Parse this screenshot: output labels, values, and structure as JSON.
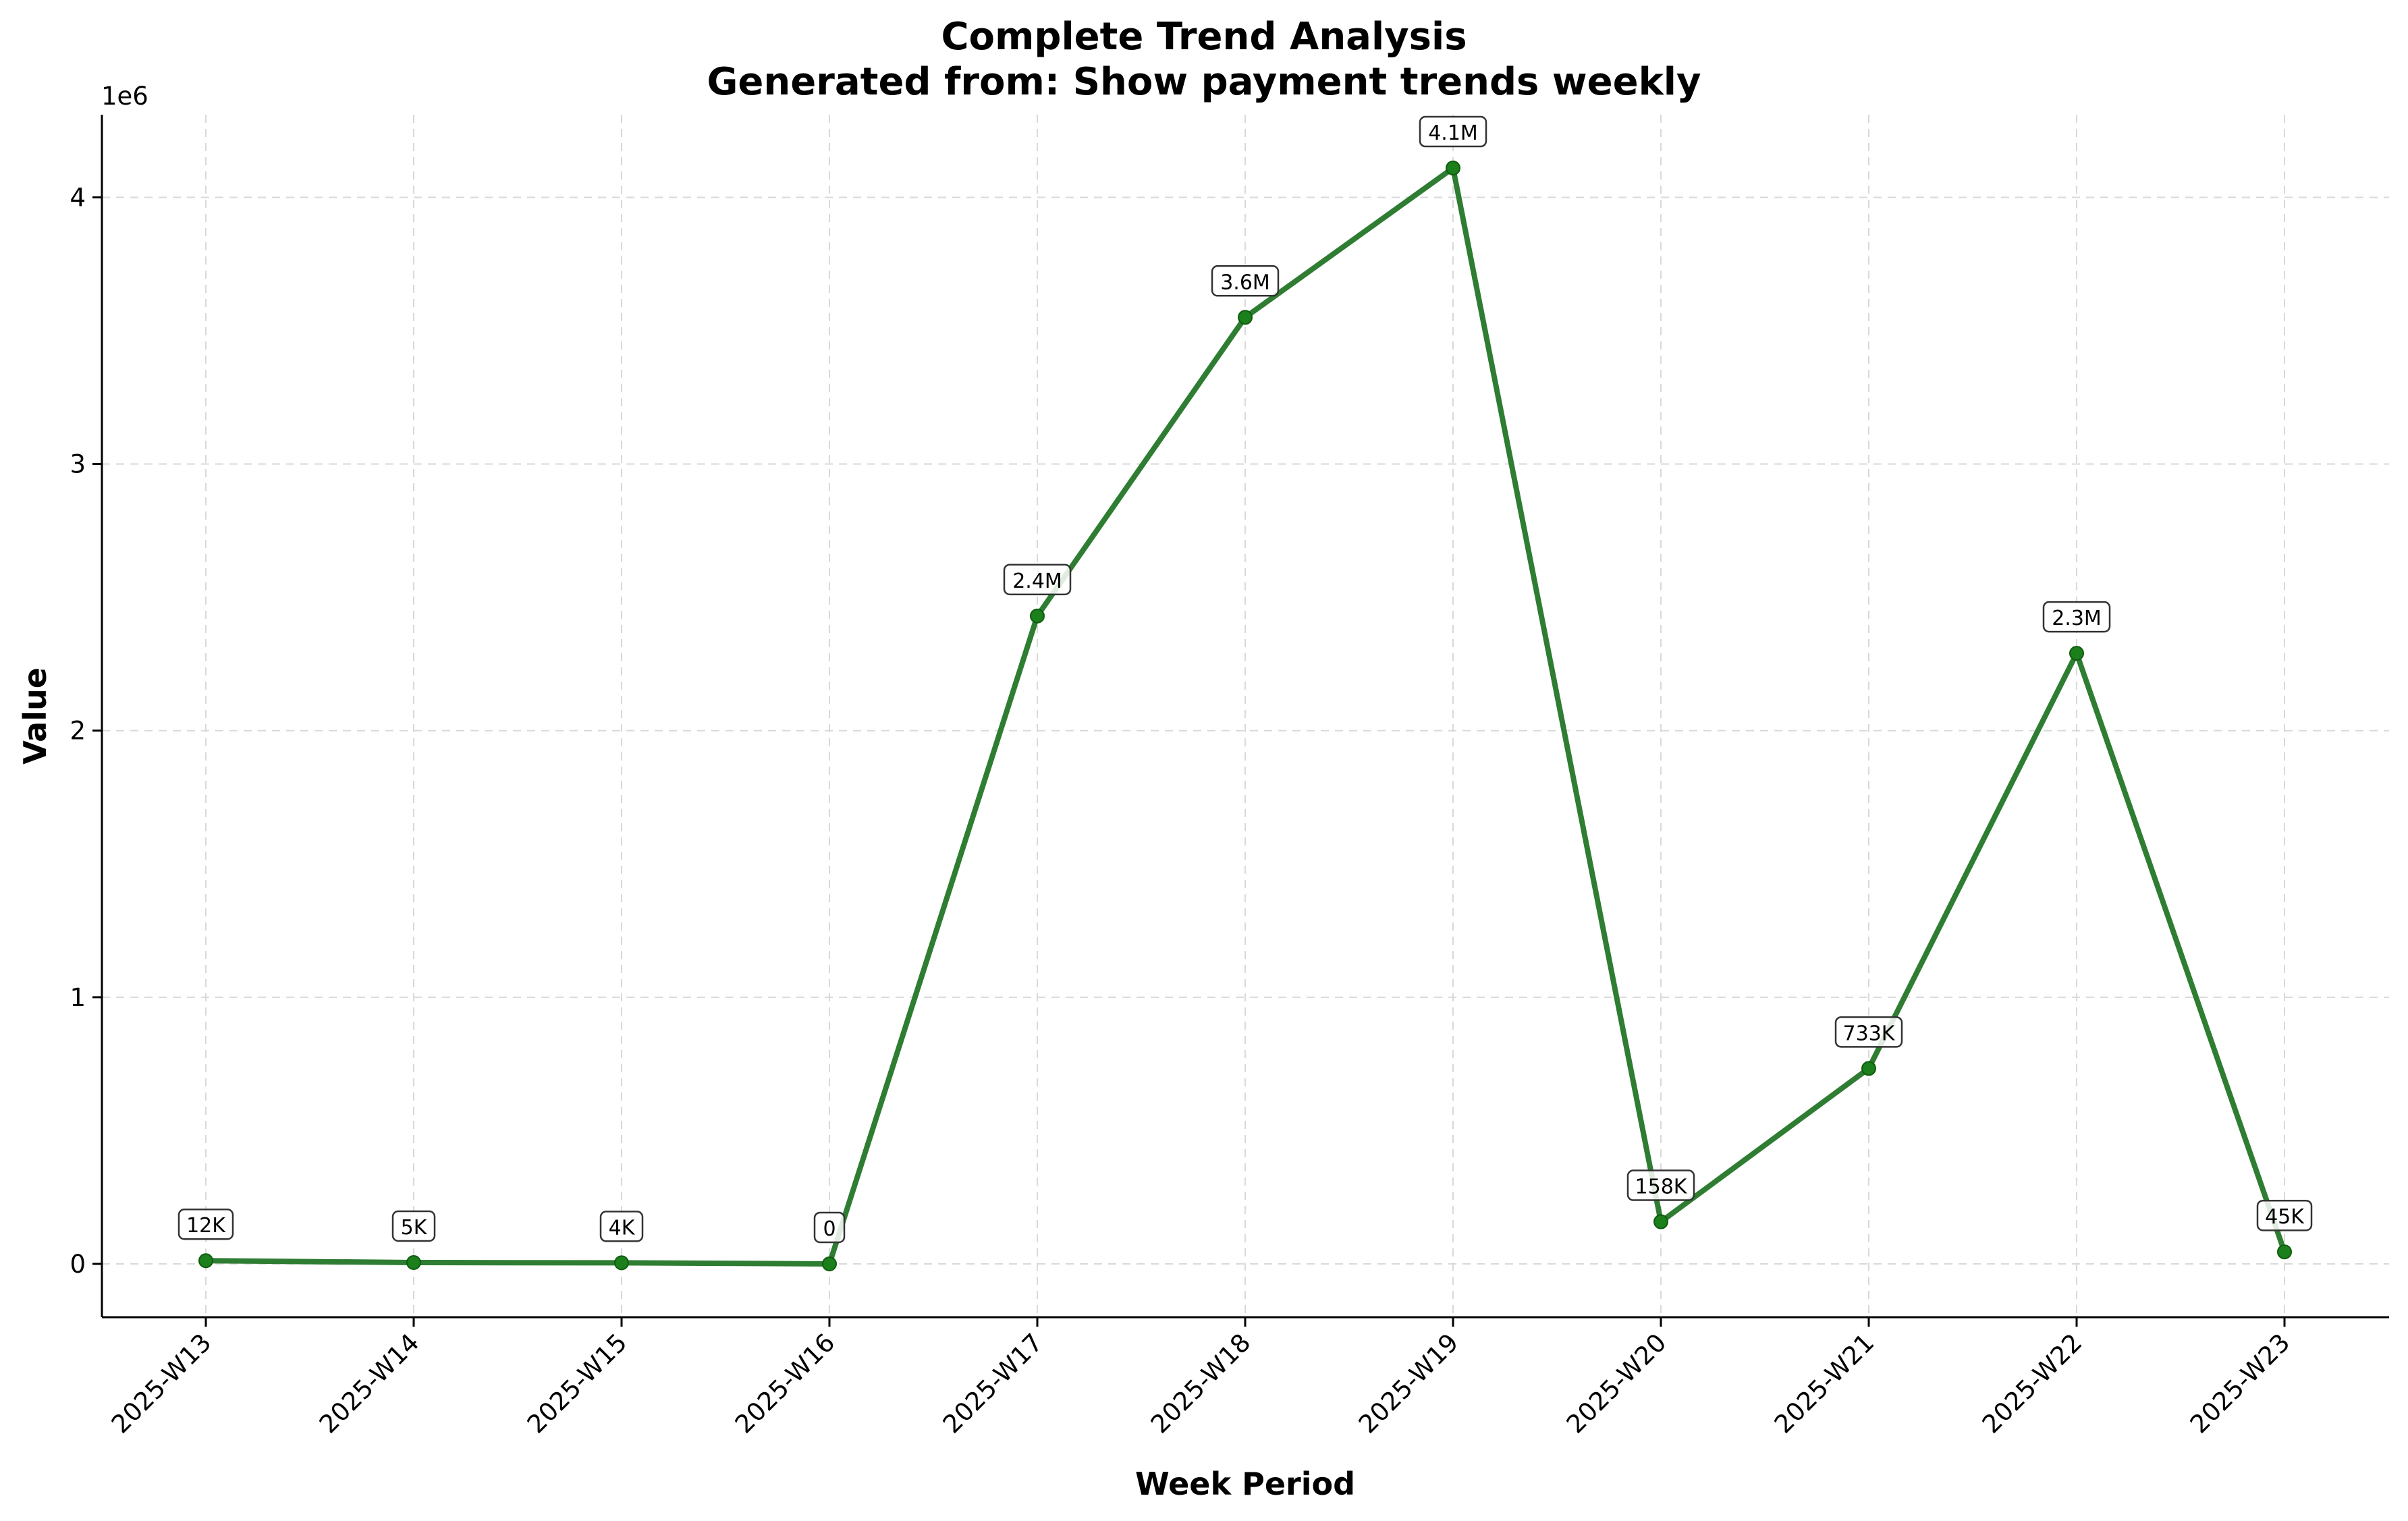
{
  "chart_data": {
    "type": "line",
    "title": "Complete Trend Analysis",
    "subtitle": "Generated from: Show payment trends weekly",
    "xlabel": "Week Period",
    "ylabel": "Value",
    "y_offset_label": "1e6",
    "categories": [
      "2025-W13",
      "2025-W14",
      "2025-W15",
      "2025-W16",
      "2025-W17",
      "2025-W18",
      "2025-W19",
      "2025-W20",
      "2025-W21",
      "2025-W22",
      "2025-W23"
    ],
    "series": [
      {
        "values": [
          12000,
          5000,
          4000,
          0,
          2430000,
          3550000,
          4110000,
          158000,
          733000,
          2290000,
          45000
        ],
        "labels": [
          "12K",
          "5K",
          "4K",
          "0",
          "2.4M",
          "3.6M",
          "4.1M",
          "158K",
          "733K",
          "2.3M",
          "45K"
        ],
        "color": "#2e7d32"
      }
    ],
    "ylim": [
      -200000,
      4310000
    ],
    "yticks": [
      0,
      1000000,
      2000000,
      3000000,
      4000000
    ],
    "ytick_labels": [
      "0",
      "1",
      "2",
      "3",
      "4"
    ],
    "grid": true,
    "marker_color": "#1b7f1b"
  }
}
